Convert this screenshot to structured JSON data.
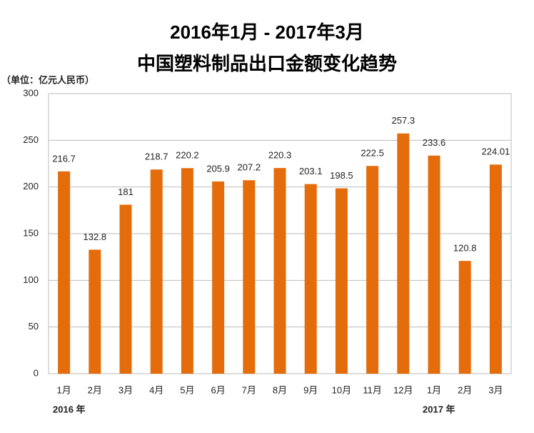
{
  "chart_data": {
    "type": "bar",
    "title": "2016年1月 - 2017年3月",
    "subtitle": "中国塑料制品出口金额变化趋势",
    "unit_label": "（单位：亿元人民币）",
    "annotations": [
      "2016 年",
      "2017 年"
    ],
    "categories": [
      "1月",
      "2月",
      "3月",
      "4月",
      "5月",
      "6月",
      "7月",
      "8月",
      "9月",
      "10月",
      "11月",
      "12月",
      "1月",
      "2月",
      "3月"
    ],
    "values": [
      216.7,
      132.8,
      181,
      218.7,
      220.2,
      205.9,
      207.2,
      220.3,
      203.1,
      198.5,
      222.5,
      257.3,
      233.6,
      120.8,
      224.01
    ],
    "color": "#e46c0a",
    "ylim": [
      0,
      300
    ],
    "yticks": [
      0,
      50,
      100,
      150,
      200,
      250,
      300
    ],
    "grid": true
  }
}
